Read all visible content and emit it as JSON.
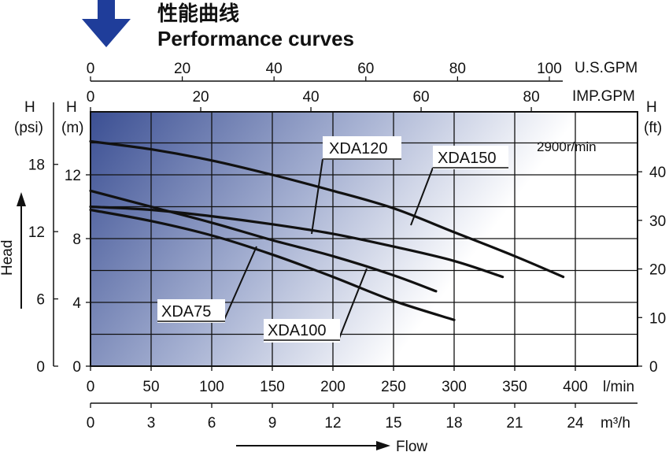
{
  "title_cn": "性能曲线",
  "title_en": "Performance curves",
  "speed_note": "2900r/min",
  "chart_data": {
    "type": "line",
    "title": "Performance curves",
    "xlabel": "Flow",
    "ylabel": "Head",
    "xlim": [
      0,
      450
    ],
    "ylim": [
      0,
      16
    ],
    "primary_x_unit": "l/min",
    "primary_y_unit": "(m)",
    "axes": {
      "usgpm": {
        "unit": "U.S.GPM",
        "ticks": [
          "0",
          "20",
          "40",
          "60",
          "80",
          "100"
        ]
      },
      "impgpm": {
        "unit": "IMP.GPM",
        "ticks": [
          "0",
          "20",
          "40",
          "60",
          "80"
        ]
      },
      "lmin": {
        "unit": "l/min",
        "ticks": [
          "0",
          "50",
          "100",
          "150",
          "200",
          "250",
          "300",
          "350",
          "400"
        ]
      },
      "m3h": {
        "unit": "m³/h",
        "ticks": [
          "0",
          "3",
          "6",
          "9",
          "12",
          "15",
          "18",
          "21",
          "24"
        ]
      },
      "psi": {
        "label": "H",
        "unit": "(psi)",
        "ticks": [
          "0",
          "6",
          "12",
          "18"
        ]
      },
      "m": {
        "label": "H",
        "unit": "(m)",
        "ticks": [
          "0",
          "4",
          "8",
          "12"
        ]
      },
      "ft": {
        "label": "H",
        "unit": "(ft)",
        "ticks": [
          "0",
          "10",
          "20",
          "30",
          "40"
        ]
      }
    },
    "series": [
      {
        "name": "XDA75",
        "x": [
          0,
          50,
          100,
          150,
          200,
          250,
          300
        ],
        "y": [
          9.8,
          9.1,
          8.2,
          7.0,
          5.6,
          4.1,
          2.9
        ]
      },
      {
        "name": "XDA100",
        "x": [
          0,
          50,
          100,
          150,
          200,
          250,
          285
        ],
        "y": [
          11.0,
          10.0,
          9.0,
          7.9,
          6.9,
          5.7,
          4.7
        ]
      },
      {
        "name": "XDA120",
        "x": [
          0,
          50,
          100,
          150,
          200,
          250,
          300,
          340
        ],
        "y": [
          10.0,
          9.8,
          9.4,
          8.9,
          8.3,
          7.5,
          6.6,
          5.6
        ]
      },
      {
        "name": "XDA150",
        "x": [
          0,
          50,
          100,
          150,
          200,
          250,
          300,
          350,
          390
        ],
        "y": [
          14.1,
          13.6,
          12.9,
          12.0,
          11.0,
          9.9,
          8.4,
          6.9,
          5.6
        ]
      }
    ],
    "grid": true
  }
}
